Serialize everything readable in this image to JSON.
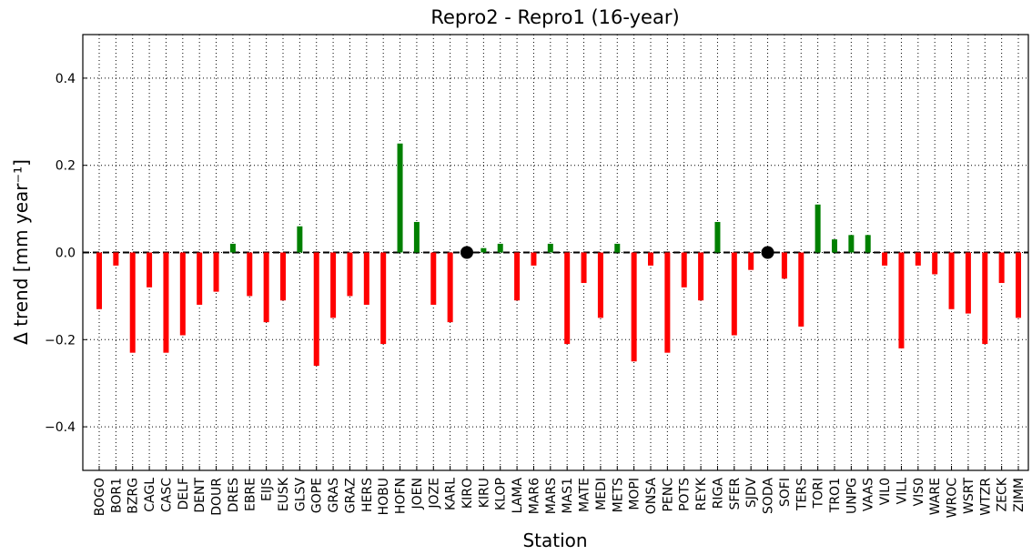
{
  "chart_data": {
    "type": "bar",
    "title": "Repro2 - Repro1 (16-year)",
    "x_label": "Station",
    "y_label": "Δ trend [mm year⁻¹]",
    "categories": [
      "BOGO",
      "BOR1",
      "BZRG",
      "CAGL",
      "CASC",
      "DELF",
      "DENT",
      "DOUR",
      "DRES",
      "EBRE",
      "EIJS",
      "EUSK",
      "GLSV",
      "GOPE",
      "GRAS",
      "GRAZ",
      "HERS",
      "HOBU",
      "HOFN",
      "JOEN",
      "JOZE",
      "KARL",
      "KIRO",
      "KIRU",
      "KLOP",
      "LAMA",
      "MAR6",
      "MARS",
      "MAS1",
      "MATE",
      "MEDI",
      "METS",
      "MOPI",
      "ONSA",
      "PENC",
      "POTS",
      "REYK",
      "RIGA",
      "SFER",
      "SJDV",
      "SODA",
      "SOFI",
      "TERS",
      "TORI",
      "TRO1",
      "UNPG",
      "VAAS",
      "VIL0",
      "VILL",
      "VIS0",
      "WARE",
      "WROC",
      "WSRT",
      "WTZR",
      "ZECK",
      "ZIMM"
    ],
    "values": [
      -0.13,
      -0.03,
      -0.23,
      -0.08,
      -0.23,
      -0.19,
      -0.12,
      -0.09,
      0.02,
      -0.1,
      -0.16,
      -0.11,
      0.06,
      -0.26,
      -0.15,
      -0.1,
      -0.12,
      -0.21,
      0.25,
      0.07,
      -0.12,
      -0.16,
      0,
      0.01,
      0.02,
      -0.11,
      -0.03,
      0.02,
      -0.21,
      -0.07,
      -0.15,
      0.02,
      -0.25,
      -0.03,
      -0.23,
      -0.08,
      -0.11,
      0.07,
      -0.19,
      -0.04,
      0,
      -0.06,
      -0.17,
      0.11,
      0.03,
      0.04,
      0.04,
      -0.03,
      -0.22,
      -0.03,
      -0.05,
      -0.13,
      -0.14,
      -0.21,
      -0.07,
      -0.15
    ],
    "colors": {
      "positive": "#008000",
      "negative": "#ff0000",
      "zero": "#000000"
    },
    "ylim": [
      -0.5,
      0.5
    ],
    "yticks": [
      {
        "value": -0.4,
        "label": "−0.4"
      },
      {
        "value": -0.2,
        "label": "−0.2"
      },
      {
        "value": 0,
        "label": "0.0"
      },
      0.2,
      0.4
    ],
    "grid": true
  }
}
